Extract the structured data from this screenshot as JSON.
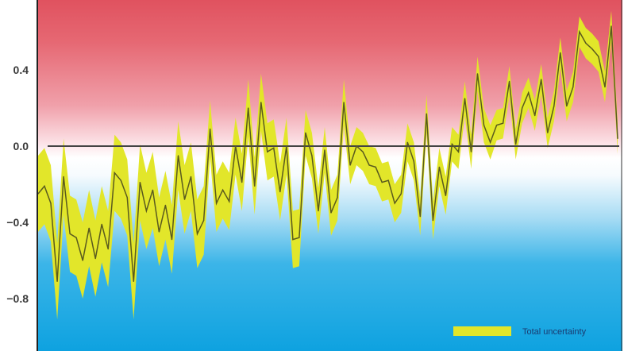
{
  "chart_data": {
    "type": "line",
    "title": "",
    "xlabel": "",
    "ylabel": "",
    "ylim": [
      -1.075,
      0.767
    ],
    "yticks": [
      "0.4",
      "0.0",
      "−0.4",
      "−0.8"
    ],
    "ytick_values": [
      0.4,
      0.0,
      -0.4,
      -0.8
    ],
    "grid": false,
    "reference_line": 0.0,
    "background": "vertical gradient red (warm, above 0) to white at 0 to blue (cool, below 0)",
    "colors": {
      "warm": "#e0525f",
      "neutral": "#ffffff",
      "cool": "#12a3e0",
      "band": "#e2e62a",
      "line": "#5a5a1e",
      "zero_line": "#444444"
    },
    "legend": {
      "placement": "bottom-right",
      "entries": [
        {
          "label": "Total uncertainty",
          "color": "#e2e62a"
        }
      ]
    },
    "series": [
      {
        "values": [
          -0.25,
          -0.21,
          -0.3,
          -0.71,
          -0.16,
          -0.46,
          -0.48,
          -0.6,
          -0.43,
          -0.59,
          -0.41,
          -0.54,
          -0.14,
          -0.18,
          -0.27,
          -0.71,
          -0.19,
          -0.34,
          -0.23,
          -0.45,
          -0.31,
          -0.49,
          -0.05,
          -0.28,
          -0.16,
          -0.46,
          -0.39,
          0.09,
          -0.3,
          -0.23,
          -0.29,
          0.0,
          -0.19,
          0.2,
          -0.21,
          0.23,
          -0.03,
          -0.01,
          -0.24,
          0.0,
          -0.49,
          -0.48,
          0.07,
          -0.05,
          -0.34,
          -0.02,
          -0.35,
          -0.27,
          0.23,
          -0.1,
          0.0,
          -0.03,
          -0.1,
          -0.11,
          -0.19,
          -0.18,
          -0.3,
          -0.25,
          0.02,
          -0.08,
          -0.37,
          0.17,
          -0.39,
          -0.11,
          -0.26,
          0.01,
          -0.03,
          0.25,
          -0.03,
          0.38,
          0.11,
          0.02,
          0.11,
          0.12,
          0.34,
          0.01,
          0.2,
          0.28,
          0.16,
          0.35,
          0.07,
          0.21,
          0.49,
          0.21,
          0.31,
          0.6,
          0.54,
          0.51,
          0.47,
          0.31,
          0.63,
          0.04
        ],
        "uncertainty": [
          0.2,
          0.2,
          0.2,
          0.2,
          0.2,
          0.2,
          0.2,
          0.2,
          0.2,
          0.2,
          0.2,
          0.2,
          0.2,
          0.2,
          0.2,
          0.2,
          0.2,
          0.2,
          0.2,
          0.18,
          0.18,
          0.18,
          0.18,
          0.18,
          0.18,
          0.18,
          0.18,
          0.15,
          0.15,
          0.15,
          0.15,
          0.15,
          0.15,
          0.15,
          0.15,
          0.15,
          0.15,
          0.15,
          0.15,
          0.15,
          0.15,
          0.15,
          0.12,
          0.12,
          0.12,
          0.12,
          0.12,
          0.12,
          0.12,
          0.1,
          0.1,
          0.1,
          0.1,
          0.1,
          0.1,
          0.1,
          0.1,
          0.1,
          0.1,
          0.1,
          0.1,
          0.1,
          0.1,
          0.1,
          0.1,
          0.09,
          0.09,
          0.09,
          0.09,
          0.09,
          0.09,
          0.09,
          0.08,
          0.08,
          0.08,
          0.08,
          0.08,
          0.08,
          0.08,
          0.08,
          0.08,
          0.08,
          0.08,
          0.08,
          0.08,
          0.08,
          0.08,
          0.08,
          0.08,
          0.08,
          0.08,
          0.08
        ]
      }
    ]
  }
}
